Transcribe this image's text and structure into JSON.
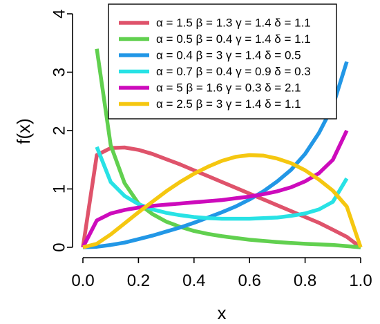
{
  "chart_data": {
    "type": "line",
    "xlabel": "x",
    "ylabel": "f(x)",
    "xlim": [
      0,
      1
    ],
    "ylim": [
      0,
      4
    ],
    "xticks": [
      "0.0",
      "0.2",
      "0.4",
      "0.6",
      "0.8",
      "1.0"
    ],
    "yticks": [
      "0",
      "1",
      "2",
      "3",
      "4"
    ],
    "grid": false,
    "legend_position": "top-right",
    "series": [
      {
        "name": "α = 1.5 β = 1.3 γ = 1.4 δ = 1.1",
        "color": "#DF536B",
        "x": [
          0,
          0.05,
          0.1,
          0.15,
          0.2,
          0.25,
          0.3,
          0.35,
          0.4,
          0.45,
          0.5,
          0.55,
          0.6,
          0.65,
          0.7,
          0.75,
          0.8,
          0.85,
          0.9,
          0.95,
          1.0
        ],
        "y": [
          0,
          1.58,
          1.7,
          1.71,
          1.67,
          1.6,
          1.51,
          1.42,
          1.32,
          1.22,
          1.12,
          1.02,
          0.92,
          0.82,
          0.72,
          0.62,
          0.52,
          0.42,
          0.3,
          0.18,
          0
        ]
      },
      {
        "name": "α = 0.5 β = 0.4 γ = 1.4 δ = 1.1",
        "color": "#61D04F",
        "x": [
          0.05,
          0.1,
          0.15,
          0.2,
          0.25,
          0.3,
          0.35,
          0.4,
          0.45,
          0.5,
          0.55,
          0.6,
          0.65,
          0.7,
          0.75,
          0.8,
          0.85,
          0.9,
          0.95,
          1.0
        ],
        "y": [
          3.4,
          1.75,
          1.1,
          0.75,
          0.57,
          0.44,
          0.35,
          0.28,
          0.23,
          0.19,
          0.16,
          0.13,
          0.11,
          0.09,
          0.075,
          0.06,
          0.05,
          0.04,
          0.02,
          0
        ]
      },
      {
        "name": "α = 0.4 β = 3 γ = 1.4 δ = 0.5",
        "color": "#2297E6",
        "x": [
          0,
          0.05,
          0.1,
          0.15,
          0.2,
          0.25,
          0.3,
          0.35,
          0.4,
          0.45,
          0.5,
          0.55,
          0.6,
          0.65,
          0.7,
          0.75,
          0.8,
          0.85,
          0.9,
          0.95
        ],
        "y": [
          0,
          0.01,
          0.04,
          0.08,
          0.14,
          0.2,
          0.27,
          0.34,
          0.42,
          0.51,
          0.6,
          0.7,
          0.82,
          0.96,
          1.13,
          1.33,
          1.6,
          1.96,
          2.42,
          3.18
        ]
      },
      {
        "name": "α = 0.7 β = 0.4 γ = 0.9 δ = 0.3",
        "color": "#28E2E5",
        "x": [
          0.05,
          0.1,
          0.15,
          0.2,
          0.25,
          0.3,
          0.35,
          0.4,
          0.45,
          0.5,
          0.55,
          0.6,
          0.65,
          0.7,
          0.75,
          0.8,
          0.85,
          0.9,
          0.95
        ],
        "y": [
          1.72,
          1.12,
          0.88,
          0.74,
          0.65,
          0.59,
          0.55,
          0.52,
          0.5,
          0.49,
          0.49,
          0.49,
          0.5,
          0.51,
          0.54,
          0.58,
          0.65,
          0.78,
          1.18
        ]
      },
      {
        "name": "α = 5 β = 1.6 γ = 0.3 δ = 2.1",
        "color": "#CD0BBC",
        "x": [
          0,
          0.05,
          0.1,
          0.15,
          0.2,
          0.25,
          0.3,
          0.35,
          0.4,
          0.45,
          0.5,
          0.55,
          0.6,
          0.65,
          0.7,
          0.75,
          0.8,
          0.85,
          0.9,
          0.95
        ],
        "y": [
          0,
          0.46,
          0.58,
          0.64,
          0.68,
          0.71,
          0.73,
          0.75,
          0.77,
          0.79,
          0.81,
          0.84,
          0.87,
          0.91,
          0.96,
          1.03,
          1.13,
          1.27,
          1.5,
          2.0
        ]
      },
      {
        "name": "α = 2.5 β = 3 γ = 1.4 δ = 1.1",
        "color": "#F5C710",
        "x": [
          0,
          0.05,
          0.1,
          0.15,
          0.2,
          0.25,
          0.3,
          0.35,
          0.4,
          0.45,
          0.5,
          0.55,
          0.6,
          0.65,
          0.7,
          0.75,
          0.8,
          0.85,
          0.9,
          0.95,
          1.0
        ],
        "y": [
          0,
          0.06,
          0.22,
          0.41,
          0.6,
          0.78,
          0.96,
          1.12,
          1.26,
          1.38,
          1.48,
          1.55,
          1.58,
          1.57,
          1.52,
          1.44,
          1.32,
          1.16,
          0.97,
          0.7,
          0
        ]
      }
    ]
  }
}
